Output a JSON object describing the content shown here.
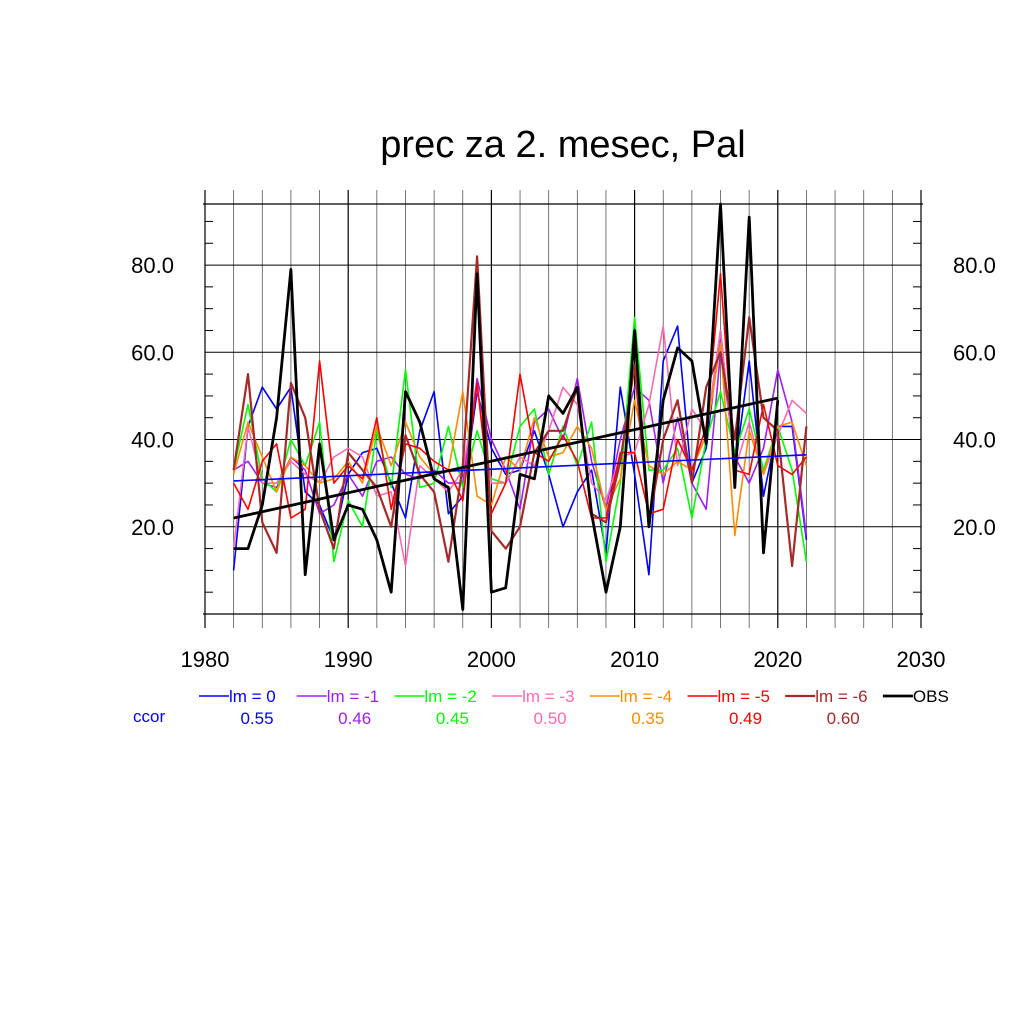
{
  "chart_data": {
    "type": "line",
    "title": "prec za 2. mesec, Pal",
    "xlabel": "",
    "ylabel": "",
    "xlim": [
      1980,
      2030
    ],
    "ylim": [
      0,
      94
    ],
    "x_ticks": [
      1980,
      1990,
      2000,
      2010,
      2020,
      2030
    ],
    "y_ticks": [
      20,
      40,
      60,
      80
    ],
    "y_tick_labels": [
      "20.0",
      "40.0",
      "60.0",
      "80.0"
    ],
    "grid": true,
    "legend_position": "bottom",
    "ccor_label": "ccor",
    "ccor_label_color": "#0000ff",
    "x": [
      1982,
      1983,
      1984,
      1985,
      1986,
      1987,
      1988,
      1989,
      1990,
      1991,
      1992,
      1993,
      1994,
      1995,
      1996,
      1997,
      1998,
      1999,
      2000,
      2001,
      2002,
      2003,
      2004,
      2005,
      2006,
      2007,
      2008,
      2009,
      2010,
      2011,
      2012,
      2013,
      2014,
      2015,
      2016,
      2017,
      2018,
      2019,
      2020,
      2021,
      2022
    ],
    "series": [
      {
        "name": "lm = 0",
        "color": "#0000ff",
        "width": 1.6,
        "ccor": "0.55",
        "values": [
          10,
          43,
          52,
          47,
          52,
          28,
          25,
          17,
          32,
          37,
          38,
          30,
          22,
          42,
          51,
          23,
          27,
          51,
          38,
          32,
          33,
          42,
          32,
          20,
          28,
          33,
          14,
          52,
          32,
          9,
          58,
          66,
          30,
          38,
          65,
          33,
          58,
          27,
          43,
          43,
          17
        ]
      },
      {
        "name": "lm = -1",
        "color": "#a020f0",
        "width": 1.6,
        "ccor": "0.46",
        "values": [
          33,
          35,
          30,
          29,
          36,
          33,
          23,
          25,
          32,
          27,
          35,
          36,
          32,
          31,
          33,
          30,
          30,
          54,
          40,
          33,
          24,
          44,
          47,
          40,
          54,
          35,
          24,
          40,
          52,
          49,
          30,
          45,
          30,
          24,
          60,
          36,
          30,
          38,
          56,
          44,
          18
        ]
      },
      {
        "name": "lm = -2",
        "color": "#00ff00",
        "width": 1.6,
        "ccor": "0.45",
        "values": [
          33,
          48,
          31,
          28,
          40,
          34,
          44,
          12,
          26,
          20,
          42,
          29,
          56,
          29,
          30,
          43,
          29,
          42,
          31,
          30,
          43,
          47,
          32,
          43,
          34,
          44,
          12,
          30,
          68,
          33,
          33,
          38,
          22,
          40,
          51,
          37,
          47,
          33,
          43,
          33,
          12
        ]
      },
      {
        "name": "lm = -3",
        "color": "#ff69b4",
        "width": 1.6,
        "ccor": "0.50",
        "values": [
          15,
          43,
          30,
          30,
          35,
          32,
          30,
          36,
          38,
          36,
          27,
          28,
          11,
          34,
          31,
          28,
          33,
          52,
          30,
          30,
          36,
          34,
          42,
          52,
          48,
          30,
          26,
          36,
          37,
          48,
          66,
          34,
          47,
          42,
          65,
          33,
          44,
          32,
          41,
          49,
          46
        ]
      },
      {
        "name": "lm = -4",
        "color": "#ff8c00",
        "width": 1.6,
        "ccor": "0.35",
        "values": [
          32,
          44,
          36,
          28,
          36,
          34,
          30,
          31,
          35,
          30,
          43,
          34,
          44,
          36,
          32,
          33,
          51,
          27,
          25,
          36,
          33,
          45,
          36,
          37,
          43,
          38,
          24,
          31,
          49,
          34,
          32,
          35,
          33,
          41,
          62,
          18,
          42,
          32,
          43,
          44,
          34
        ]
      },
      {
        "name": "lm = -5",
        "color": "#ff0000",
        "width": 1.6,
        "ccor": "0.49",
        "values": [
          30,
          24,
          35,
          39,
          22,
          24,
          58,
          30,
          34,
          31,
          45,
          24,
          39,
          38,
          35,
          33,
          26,
          53,
          23,
          30,
          55,
          37,
          35,
          41,
          35,
          22,
          22,
          37,
          37,
          23,
          24,
          40,
          33,
          43,
          78,
          33,
          32,
          48,
          34,
          32,
          36
        ]
      },
      {
        "name": "lm = -6",
        "color": "#a52a2a",
        "width": 2.2,
        "ccor": "0.60",
        "values": [
          33,
          55,
          21,
          14,
          53,
          45,
          24,
          15,
          37,
          33,
          29,
          20,
          41,
          32,
          28,
          12,
          34,
          82,
          19,
          15,
          20,
          37,
          42,
          42,
          52,
          23,
          21,
          35,
          57,
          21,
          40,
          49,
          30,
          52,
          60,
          40,
          68,
          45,
          42,
          11,
          43
        ]
      },
      {
        "name": "OBS",
        "color": "#000000",
        "width": 2.8,
        "ccor": "",
        "values": [
          15,
          15,
          25,
          45,
          79,
          9,
          39,
          17,
          25,
          24,
          17,
          5,
          51,
          44,
          31,
          29,
          1,
          78,
          5,
          6,
          32,
          31,
          50,
          46,
          52,
          23,
          5,
          20,
          65,
          20,
          49,
          61,
          58,
          39,
          94,
          29,
          91,
          14,
          49,
          null,
          null
        ]
      }
    ],
    "trend_lines": [
      {
        "series": "lm = 0",
        "color": "#0000ff",
        "width": 1.6,
        "x": [
          1982,
          2022
        ],
        "y": [
          30.5,
          36.5
        ]
      },
      {
        "series": "OBS",
        "color": "#000000",
        "width": 2.8,
        "x": [
          1982,
          2020
        ],
        "y": [
          22,
          49.5
        ]
      }
    ]
  }
}
